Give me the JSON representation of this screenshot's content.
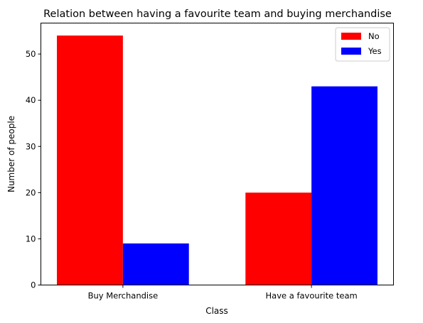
{
  "chart_data": {
    "type": "bar",
    "title": "Relation between having a favourite team and buying merchandise",
    "xlabel": "Class",
    "ylabel": "Number of people",
    "categories": [
      "Buy Merchandise",
      "Have a favourite team"
    ],
    "series": [
      {
        "name": "No",
        "color": "#ff0000",
        "values": [
          54,
          20
        ]
      },
      {
        "name": "Yes",
        "color": "#0000ff",
        "values": [
          9,
          43
        ]
      }
    ],
    "ylim": [
      0,
      56.7
    ],
    "yticks": [
      0,
      10,
      20,
      30,
      40,
      50
    ],
    "grid": false,
    "legend": "top-right"
  }
}
